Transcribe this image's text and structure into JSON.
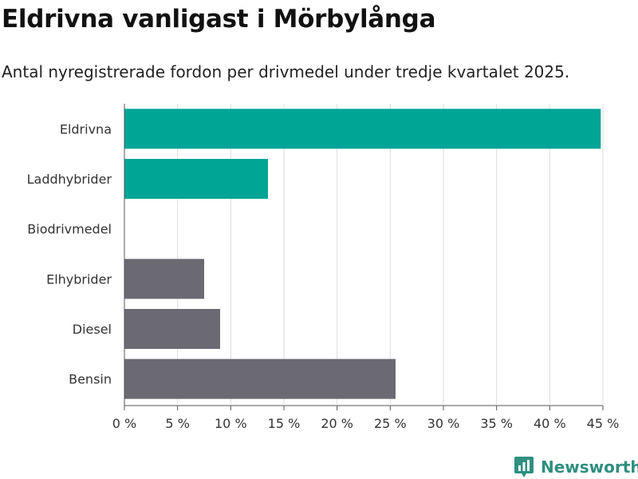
{
  "title": "Eldrivna vanligast i Mörbylånga",
  "subtitle": "Antal nyregistrerade fordon per drivmedel under tredje kvartalet 2025.",
  "brand": "Newsworthy",
  "colors": {
    "highlight": "#00a596",
    "default": "#6b6a73",
    "grid": "#dddddd",
    "axis": "#555555",
    "brand": "#2f8f80"
  },
  "chart_data": {
    "type": "bar",
    "orientation": "horizontal",
    "categories": [
      "Eldrivna",
      "Laddhybrider",
      "Biodrivmedel",
      "Elhybrider",
      "Diesel",
      "Bensin"
    ],
    "values": [
      44.8,
      13.5,
      0,
      7.5,
      9.0,
      25.5
    ],
    "highlighted": [
      true,
      true,
      false,
      false,
      false,
      false
    ],
    "xlim": [
      0,
      45
    ],
    "xticks": [
      0,
      5,
      10,
      15,
      20,
      25,
      30,
      35,
      40,
      45
    ],
    "xtick_labels": [
      "0 %",
      "5 %",
      "10 %",
      "15 %",
      "20 %",
      "25 %",
      "30 %",
      "35 %",
      "40 %",
      "45 %"
    ],
    "xlabel": "",
    "ylabel": "",
    "grid": true,
    "legend": "none"
  }
}
